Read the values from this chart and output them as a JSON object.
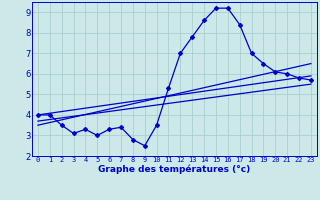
{
  "xlabel": "Graphe des températures (°c)",
  "bg_color": "#cce8e8",
  "grid_color": "#aacece",
  "line_color": "#0000cc",
  "xlim": [
    -0.5,
    23.5
  ],
  "ylim": [
    2,
    9.5
  ],
  "yticks": [
    2,
    3,
    4,
    5,
    6,
    7,
    8,
    9
  ],
  "xticks": [
    0,
    1,
    2,
    3,
    4,
    5,
    6,
    7,
    8,
    9,
    10,
    11,
    12,
    13,
    14,
    15,
    16,
    17,
    18,
    19,
    20,
    21,
    22,
    23
  ],
  "line1_x": [
    0,
    1,
    2,
    3,
    4,
    5,
    6,
    7,
    8,
    9,
    10,
    11,
    12,
    13,
    14,
    15,
    16,
    17,
    18,
    19,
    20,
    21,
    22,
    23
  ],
  "line1_y": [
    4.0,
    4.0,
    3.5,
    3.1,
    3.3,
    3.0,
    3.3,
    3.4,
    2.8,
    2.5,
    3.5,
    5.3,
    7.0,
    7.8,
    8.6,
    9.2,
    9.2,
    8.4,
    7.0,
    6.5,
    6.1,
    6.0,
    5.8,
    5.7
  ],
  "line2_x": [
    0,
    23
  ],
  "line2_y": [
    4.0,
    5.9
  ],
  "line3_x": [
    0,
    23
  ],
  "line3_y": [
    3.7,
    5.5
  ],
  "line4_x": [
    0,
    23
  ],
  "line4_y": [
    3.5,
    6.5
  ]
}
